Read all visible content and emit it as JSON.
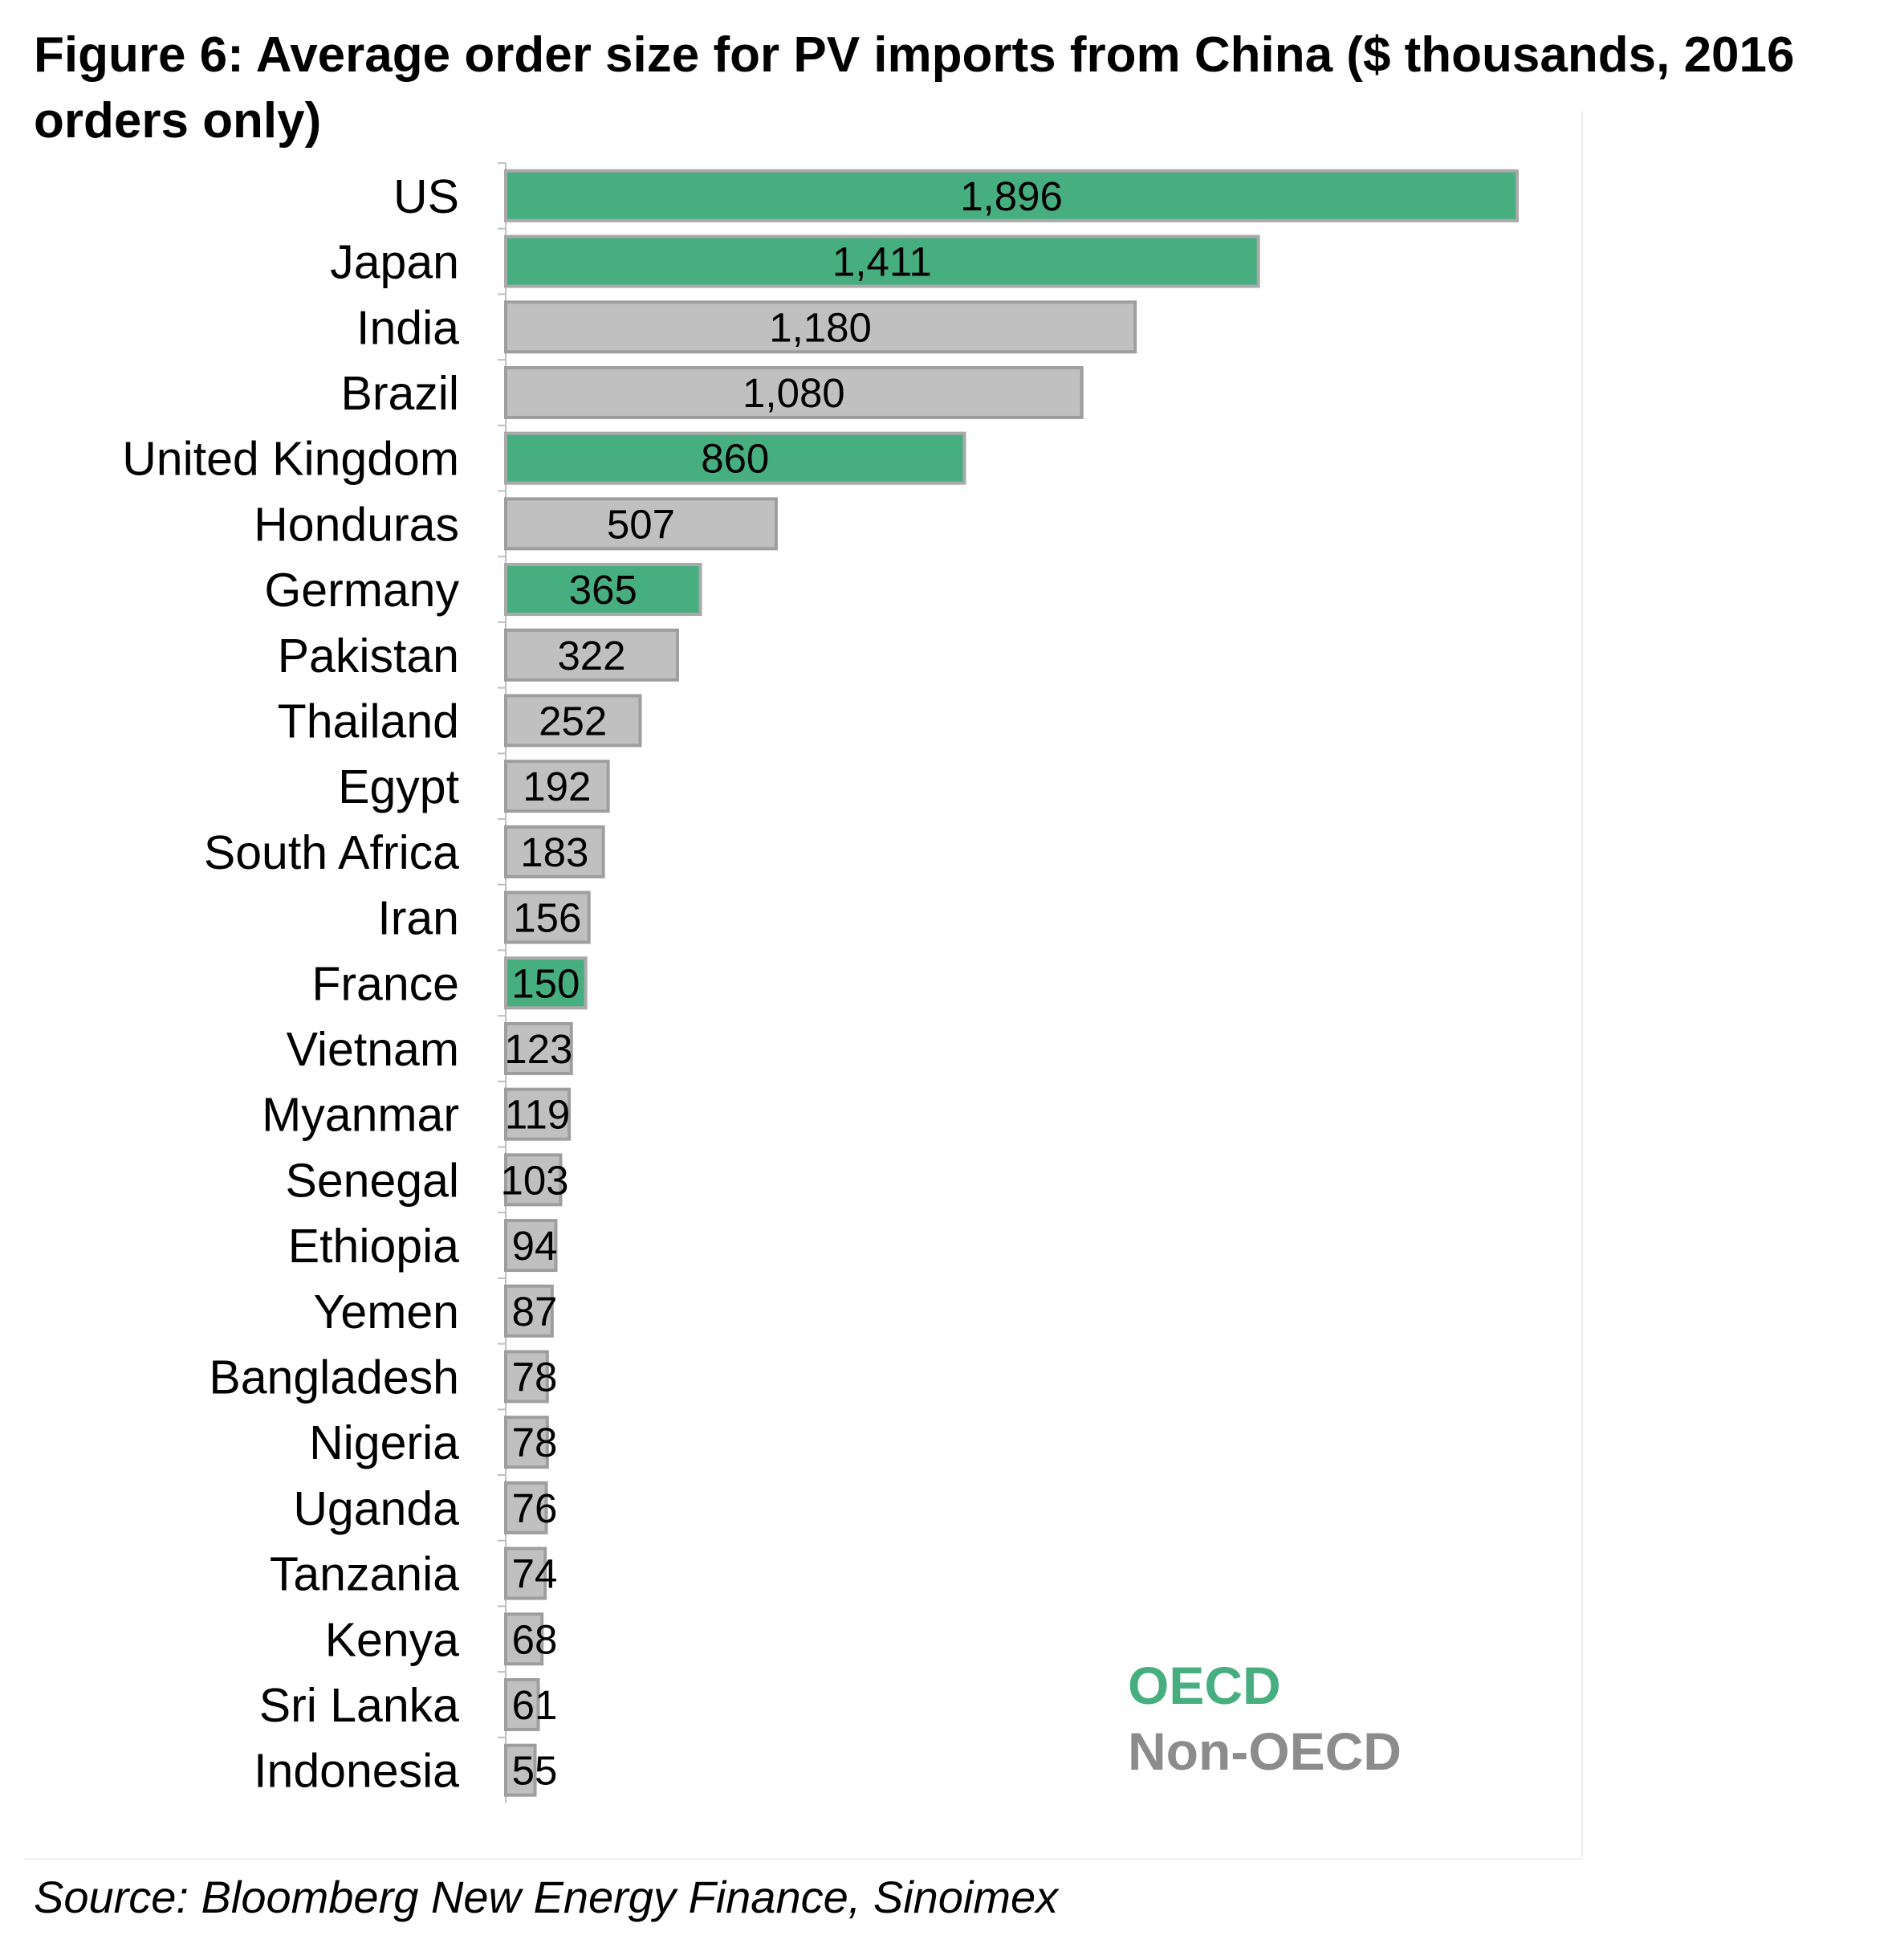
{
  "title": "Figure 6: Average order size for PV imports from China ($ thousands, 2016 orders only)",
  "source": "Source: Bloomberg New Energy Finance, Sinoimex",
  "legend": {
    "oecd_label": "OECD",
    "non_oecd_label": "Non-OECD"
  },
  "colors": {
    "oecd": "#47ae80",
    "non_oecd": "#c0c0c0",
    "bar_border_oecd": "#a9a9a9",
    "bar_border_non_oecd": "#9e9e9e"
  },
  "chart_data": {
    "type": "bar",
    "orientation": "horizontal",
    "title": "Figure 6: Average order size for PV imports from China ($ thousands, 2016 orders only)",
    "xlabel": "",
    "ylabel": "",
    "xlim": [
      0,
      2000
    ],
    "grid": false,
    "legend_position": "bottom-right",
    "categories": [
      "US",
      "Japan",
      "India",
      "Brazil",
      "United Kingdom",
      "Honduras",
      "Germany",
      "Pakistan",
      "Thailand",
      "Egypt",
      "South Africa",
      "Iran",
      "France",
      "Vietnam",
      "Myanmar",
      "Senegal",
      "Ethiopia",
      "Yemen",
      "Bangladesh",
      "Nigeria",
      "Uganda",
      "Tanzania",
      "Kenya",
      "Sri Lanka",
      "Indonesia"
    ],
    "values": [
      1896,
      1411,
      1180,
      1080,
      860,
      507,
      365,
      322,
      252,
      192,
      183,
      156,
      150,
      123,
      119,
      103,
      94,
      87,
      78,
      78,
      76,
      74,
      68,
      61,
      55
    ],
    "value_labels": [
      "1,896",
      "1,411",
      "1,180",
      "1,080",
      "860",
      "507",
      "365",
      "322",
      "252",
      "192",
      "183",
      "156",
      "150",
      "123",
      "119",
      "103",
      "94",
      "87",
      "78",
      "78",
      "76",
      "74",
      "68",
      "61",
      "55"
    ],
    "group": [
      "OECD",
      "OECD",
      "Non-OECD",
      "Non-OECD",
      "OECD",
      "Non-OECD",
      "OECD",
      "Non-OECD",
      "Non-OECD",
      "Non-OECD",
      "Non-OECD",
      "Non-OECD",
      "OECD",
      "Non-OECD",
      "Non-OECD",
      "Non-OECD",
      "Non-OECD",
      "Non-OECD",
      "Non-OECD",
      "Non-OECD",
      "Non-OECD",
      "Non-OECD",
      "Non-OECD",
      "Non-OECD",
      "Non-OECD"
    ]
  }
}
